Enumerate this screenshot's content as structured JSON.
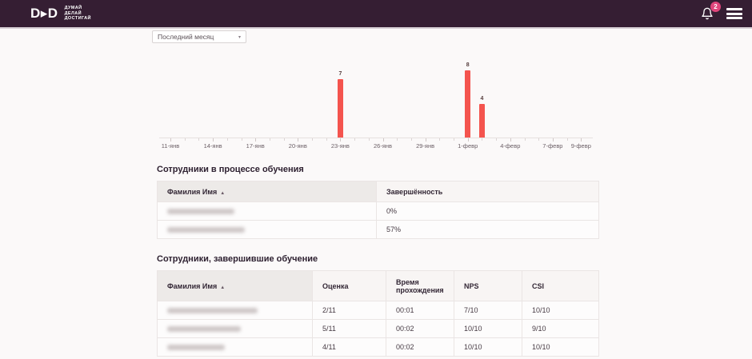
{
  "colors": {
    "header_bg": "#351e33",
    "badge_pink": "#e0457b",
    "bar_red": "#f4544e",
    "page_bg": "#fbf9f9"
  },
  "header": {
    "logo_text": "D▸D",
    "tagline_lines": [
      "ДУМАЙ",
      "ДЕЛАЙ",
      "ДОСТИГАЙ"
    ],
    "notification_count": "2"
  },
  "filter": {
    "selected_option": "Последний месяц",
    "caret": "▾"
  },
  "chart_data": {
    "type": "bar",
    "title": "",
    "xlabel": "",
    "ylabel": "",
    "x_range": "11-янв … 9-февр (daily scale, 29 days)",
    "grid": false,
    "legend": false,
    "ticks": [
      {
        "label": "11-янв",
        "day": 0
      },
      {
        "label": "14-янв",
        "day": 3
      },
      {
        "label": "17-янв",
        "day": 6
      },
      {
        "label": "20-янв",
        "day": 9
      },
      {
        "label": "23-янв",
        "day": 12
      },
      {
        "label": "26-янв",
        "day": 15
      },
      {
        "label": "29-янв",
        "day": 18
      },
      {
        "label": "1-февр",
        "day": 21
      },
      {
        "label": "4-февр",
        "day": 24
      },
      {
        "label": "7-февр",
        "day": 27
      },
      {
        "label": "9-февр",
        "day": 29
      }
    ],
    "total_days": 29,
    "bars": [
      {
        "date_label": "23-янв",
        "day": 12,
        "value": 7
      },
      {
        "date_label": "1-февр",
        "day": 21,
        "value": 8
      },
      {
        "date_label": "2-февр",
        "day": 22,
        "value": 4
      }
    ],
    "ymax_implied": 8
  },
  "tables": {
    "sort_indicator": "▲",
    "in_progress": {
      "title": "Сотрудники в процессе обучения",
      "columns": [
        "Фамилия Имя",
        "Завершённость"
      ],
      "sorted_column": "Фамилия Имя",
      "rows": [
        {
          "name_redacted": true,
          "blur_width": 84,
          "completion": "0%"
        },
        {
          "name_redacted": true,
          "blur_width": 97,
          "completion": "57%"
        }
      ]
    },
    "completed": {
      "title": "Сотрудники, завершившие обучение",
      "columns": [
        "Фамилия Имя",
        "Оценка",
        "Время прохождения",
        "NPS",
        "CSI"
      ],
      "sorted_column": "Фамилия Имя",
      "rows": [
        {
          "name_redacted": true,
          "blur_width": 113,
          "score": "2/11",
          "time": "00:01",
          "nps": "7/10",
          "csi": "10/10"
        },
        {
          "name_redacted": true,
          "blur_width": 92,
          "score": "5/11",
          "time": "00:02",
          "nps": "10/10",
          "csi": "9/10"
        },
        {
          "name_redacted": true,
          "blur_width": 72,
          "score": "4/11",
          "time": "00:02",
          "nps": "10/10",
          "csi": "10/10"
        }
      ]
    }
  }
}
